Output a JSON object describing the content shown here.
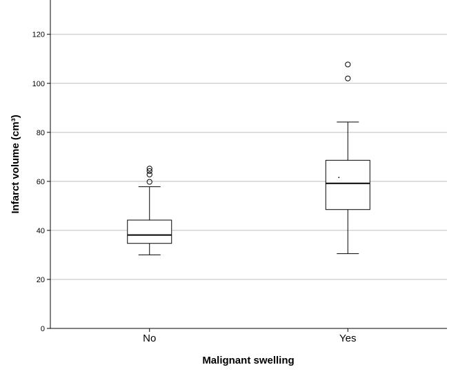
{
  "chart_data": {
    "type": "boxplot",
    "xlabel": "Malignant swelling",
    "ylabel": "Infarct volume (cm³)",
    "ylim": [
      0,
      134
    ],
    "yticks": [
      0,
      20,
      40,
      60,
      80,
      100,
      120
    ],
    "grid": true,
    "categories": [
      "No",
      "Yes"
    ],
    "boxes": [
      {
        "category": "No",
        "whisker_low": 30,
        "q1": 34.7,
        "median": 38.1,
        "q3": 44.2,
        "whisker_high": 57.8,
        "mean": null,
        "outliers": [
          59.8,
          62.8,
          64.2,
          65.2
        ]
      },
      {
        "category": "Yes",
        "whisker_low": 30.5,
        "q1": 48.5,
        "median": 59.2,
        "q3": 68.6,
        "whisker_high": 84.2,
        "mean": 61.6,
        "outliers": [
          102,
          107.7
        ]
      }
    ]
  }
}
